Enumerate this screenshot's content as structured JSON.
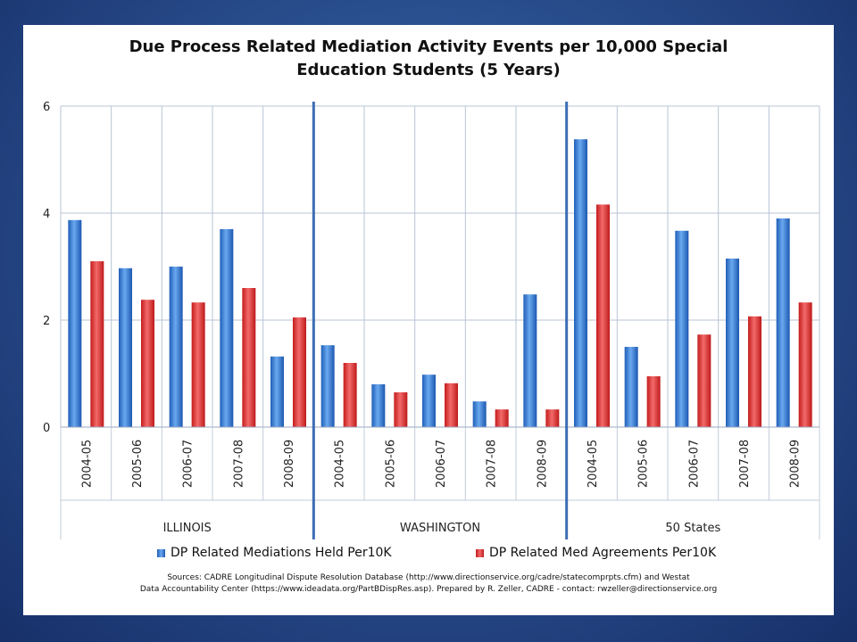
{
  "chart_data": {
    "type": "bar",
    "title_line1": "Due Process Related Mediation Activity Events per 10,000 Special",
    "title_line2": "Education Students  (5 Years)",
    "ylim": [
      0,
      6
    ],
    "yticks": [
      "0",
      "2",
      "4",
      "6"
    ],
    "grid": true,
    "legend_position": "bottom",
    "groups": [
      {
        "name": "ILLINOIS",
        "categories": [
          "2004-05",
          "2005-06",
          "2006-07",
          "2007-08",
          "2008-09"
        ]
      },
      {
        "name": "WASHINGTON",
        "categories": [
          "2004-05",
          "2005-06",
          "2006-07",
          "2007-08",
          "2008-09"
        ]
      },
      {
        "name": "50 States",
        "categories": [
          "2004-05",
          "2005-06",
          "2006-07",
          "2007-08",
          "2008-09"
        ]
      }
    ],
    "series": [
      {
        "name": "DP Related Mediations Held Per10K",
        "color": "#3a7fd5",
        "values": [
          3.87,
          2.97,
          3.0,
          3.7,
          1.32,
          1.53,
          0.8,
          0.98,
          0.48,
          2.48,
          5.38,
          1.5,
          3.67,
          3.15,
          3.9
        ]
      },
      {
        "name": "DP Related Med Agreements Per10K",
        "color": "#e03a3a",
        "values": [
          3.1,
          2.38,
          2.33,
          2.6,
          2.05,
          1.2,
          0.65,
          0.82,
          0.33,
          0.33,
          4.16,
          0.95,
          1.73,
          2.07,
          2.33
        ]
      }
    ]
  },
  "sources_line1": "Sources: CADRE Longitudinal Dispute Resolution Database  (http://www.directionservice.org/cadre/statecomprpts.cfm) and  Westat",
  "sources_line2": "Data Accountability Center (https://www.ideadata.org/PartBDispRes.asp). Prepared by R. Zeller, CADRE - contact: rwzeller@directionservice.org"
}
